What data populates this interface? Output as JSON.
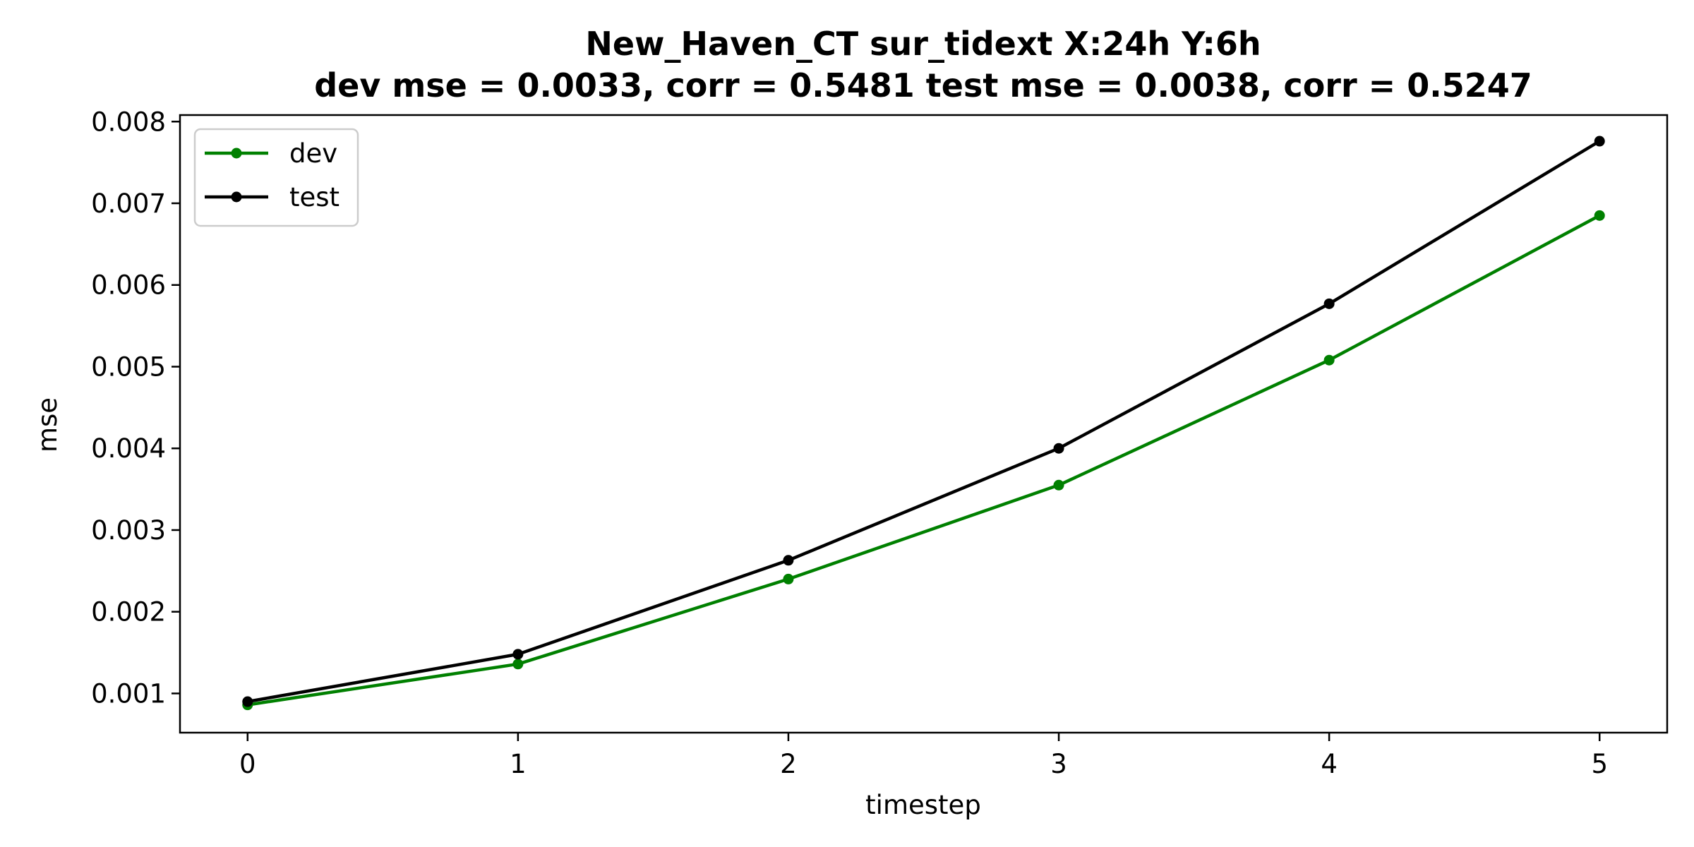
{
  "chart_data": {
    "type": "line",
    "title_line1": "New_Haven_CT   sur_tidext   X:24h   Y:6h",
    "title_line2": "dev mse = 0.0033, corr = 0.5481   test mse = 0.0038, corr = 0.5247",
    "xlabel": "timestep",
    "ylabel": "mse",
    "x": [
      0,
      1,
      2,
      3,
      4,
      5
    ],
    "xlim": [
      -0.25,
      5.25
    ],
    "ylim": [
      0.00052,
      0.00808
    ],
    "xticks": [
      "0",
      "1",
      "2",
      "3",
      "4",
      "5"
    ],
    "yticks": [
      "0.001",
      "0.002",
      "0.003",
      "0.004",
      "0.005",
      "0.006",
      "0.007",
      "0.008"
    ],
    "ytick_values": [
      0.001,
      0.002,
      0.003,
      0.004,
      0.005,
      0.006,
      0.007,
      0.008
    ],
    "grid": false,
    "legend_position": "upper-left",
    "series": [
      {
        "name": "dev",
        "color": "#008000",
        "values": [
          0.00086,
          0.00136,
          0.0024,
          0.00355,
          0.00508,
          0.00685
        ]
      },
      {
        "name": "test",
        "color": "#000000",
        "values": [
          0.0009,
          0.00148,
          0.00263,
          0.004,
          0.00577,
          0.00776
        ]
      }
    ]
  }
}
